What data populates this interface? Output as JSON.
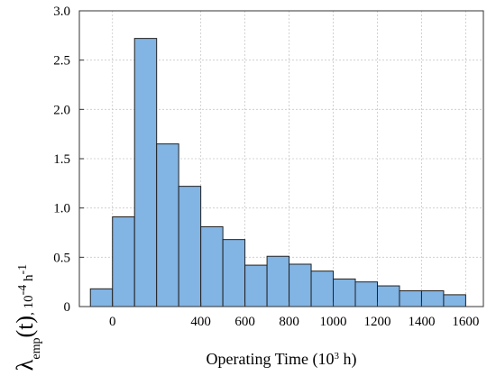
{
  "chart_data": {
    "type": "bar",
    "title": "",
    "xlabel": {
      "text": "Operating Time (10",
      "sup": "3",
      "suffix": " h)"
    },
    "ylabel": {
      "symbol": "λ",
      "sub": "emp",
      "arg": "(t)",
      "unit": ", 10",
      "unit_sup1": "-4",
      "unit_mid": " h",
      "unit_sup2": "-1"
    },
    "xlim": [
      -150,
      1680
    ],
    "ylim": [
      0,
      3.0
    ],
    "xticks": [
      0,
      400,
      600,
      800,
      1000,
      1200,
      1400,
      1600
    ],
    "xtick_labels": [
      "0",
      "400",
      "600",
      "800",
      "1000",
      "1200",
      "1400",
      "1600"
    ],
    "yticks": [
      0,
      0.5,
      1.0,
      1.5,
      2.0,
      2.5,
      3.0
    ],
    "ytick_labels": [
      "0",
      "0.5",
      "1.0",
      "1.5",
      "2.0",
      "2.5",
      "3.0"
    ],
    "grid": true,
    "bar_color": "#82b4e4",
    "bin_width": 100,
    "bin_starts": [
      -100,
      0,
      100,
      200,
      300,
      400,
      500,
      600,
      700,
      800,
      900,
      1000,
      1100,
      1200,
      1300,
      1400,
      1500
    ],
    "values": [
      0.18,
      0.91,
      2.72,
      1.65,
      1.22,
      0.81,
      0.68,
      0.42,
      0.51,
      0.43,
      0.36,
      0.28,
      0.25,
      0.21,
      0.16,
      0.16,
      0.12
    ]
  }
}
